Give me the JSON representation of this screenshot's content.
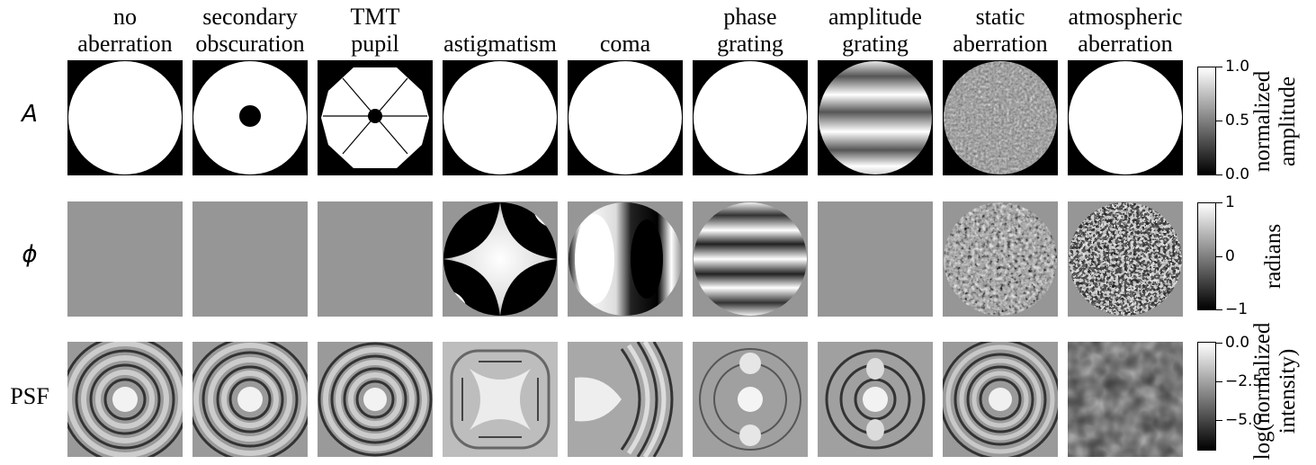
{
  "columns": [
    {
      "title": [
        "no",
        "aberration"
      ]
    },
    {
      "title": [
        "secondary",
        "obscuration"
      ]
    },
    {
      "title": [
        "TMT",
        "pupil"
      ]
    },
    {
      "title": [
        "astigmatism",
        ""
      ]
    },
    {
      "title": [
        "coma",
        ""
      ]
    },
    {
      "title": [
        "phase",
        "grating"
      ]
    },
    {
      "title": [
        "amplitude",
        "grating"
      ]
    },
    {
      "title": [
        "static",
        "aberration"
      ]
    },
    {
      "title": [
        "atmospheric",
        "aberration"
      ]
    }
  ],
  "rows": [
    {
      "label": "A"
    },
    {
      "label": "ϕ"
    },
    {
      "label": "PSF"
    }
  ],
  "colorbars": [
    {
      "ticks": [
        "1.0",
        "0.5",
        "0.0"
      ],
      "label": [
        "normalized",
        "amplitude"
      ]
    },
    {
      "ticks": [
        "1",
        "0",
        "−1"
      ],
      "label": [
        "radians",
        ""
      ]
    },
    {
      "ticks": [
        "0.0",
        "−2.5",
        "−5.0"
      ],
      "label": [
        "log(normalized",
        "intensity)"
      ]
    }
  ],
  "colors": {
    "panel_gray": "#969696",
    "background": "#ffffff"
  }
}
